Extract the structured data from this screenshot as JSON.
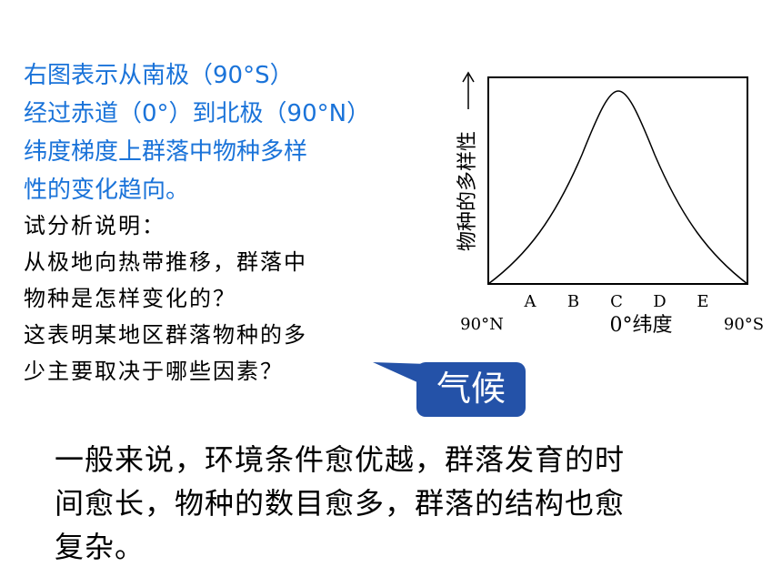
{
  "intro": {
    "lines": [
      "右图表示从南极（90°S）",
      "经过赤道（0°）到北极（90°N）",
      "纬度梯度上群落中物种多样",
      "性的变化趋向。"
    ]
  },
  "question": {
    "lines": [
      "试分析说明：",
      "从极地向热带推移，群落中",
      "物种是怎样变化的？",
      "这表明某地区群落物种的多",
      "少主要取决于哪些因素？"
    ]
  },
  "callout": "气候",
  "answer": {
    "lines": [
      "一般来说，环境条件愈优越，群落发育的时",
      "间愈长，物种的数目愈多，群落的结构也愈",
      "复杂。"
    ]
  },
  "figure": {
    "y_label": "物种的多样性",
    "points": [
      "A",
      "B",
      "C",
      "D",
      "E"
    ],
    "x_left": "90°N",
    "x_center": "0°纬度",
    "x_right": "90°S"
  }
}
